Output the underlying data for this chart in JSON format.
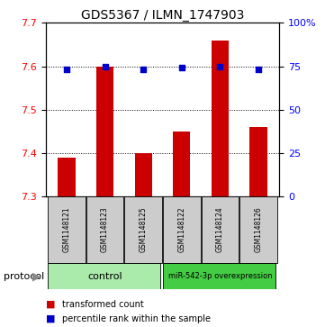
{
  "title": "GDS5367 / ILMN_1747903",
  "samples": [
    "GSM1148121",
    "GSM1148123",
    "GSM1148125",
    "GSM1148122",
    "GSM1148124",
    "GSM1148126"
  ],
  "bar_values": [
    7.39,
    7.6,
    7.4,
    7.45,
    7.66,
    7.46
  ],
  "bar_baseline": 7.3,
  "blue_dots": [
    73,
    75,
    73,
    74,
    75,
    73
  ],
  "ylim_left": [
    7.3,
    7.7
  ],
  "ylim_right": [
    0,
    100
  ],
  "yticks_left": [
    7.3,
    7.4,
    7.5,
    7.6,
    7.7
  ],
  "yticks_right": [
    0,
    25,
    50,
    75,
    100
  ],
  "bar_color": "#cc0000",
  "dot_color": "#0000cc",
  "dot_size": 25,
  "bar_width": 0.45,
  "bg_color": "#ffffff",
  "control_samples": [
    0,
    1,
    2
  ],
  "overexpr_samples": [
    3,
    4,
    5
  ],
  "control_label": "control",
  "overexpr_label": "miR-542-3p overexpression",
  "protocol_label": "protocol",
  "legend_bar_label": "transformed count",
  "legend_dot_label": "percentile rank within the sample",
  "sample_box_color": "#cccccc",
  "control_box_color": "#aaeaaa",
  "overexpr_box_color": "#44cc44",
  "title_fontsize": 10,
  "tick_fontsize": 8,
  "sample_fontsize": 5.5,
  "legend_fontsize": 7,
  "protocol_fontsize": 8
}
